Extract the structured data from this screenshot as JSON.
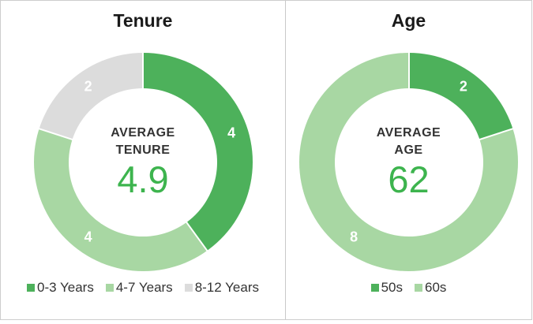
{
  "chart_data": [
    {
      "type": "pie",
      "subtype": "donut",
      "title": "Tenure",
      "categories": [
        "0-3 Years",
        "4-7 Years",
        "8-12 Years"
      ],
      "values": [
        4,
        4,
        2
      ],
      "colors": [
        "#4db15b",
        "#a8d7a3",
        "#dcdcdc"
      ],
      "data_labels": [
        "4",
        "4",
        "2"
      ],
      "center_text": [
        "AVERAGE",
        "TENURE"
      ],
      "center_value": "4.9",
      "start_angle_deg": 0,
      "direction": "clockwise",
      "legend_position": "bottom"
    },
    {
      "type": "pie",
      "subtype": "donut",
      "title": "Age",
      "categories": [
        "50s",
        "60s"
      ],
      "values": [
        2,
        8
      ],
      "colors": [
        "#4db15b",
        "#a8d7a3"
      ],
      "data_labels": [
        "2",
        "8"
      ],
      "center_text": [
        "AVERAGE",
        "AGE"
      ],
      "center_value": "62",
      "start_angle_deg": 0,
      "direction": "clockwise",
      "legend_position": "bottom"
    }
  ],
  "styles": {
    "center_value_color": "#3db44e",
    "segment_label_color": "#ffffff",
    "title_color": "#1a1a1a",
    "legend_text_color": "#333333",
    "panel_border_color": "#cdcdcd",
    "background_color": "#ffffff"
  }
}
